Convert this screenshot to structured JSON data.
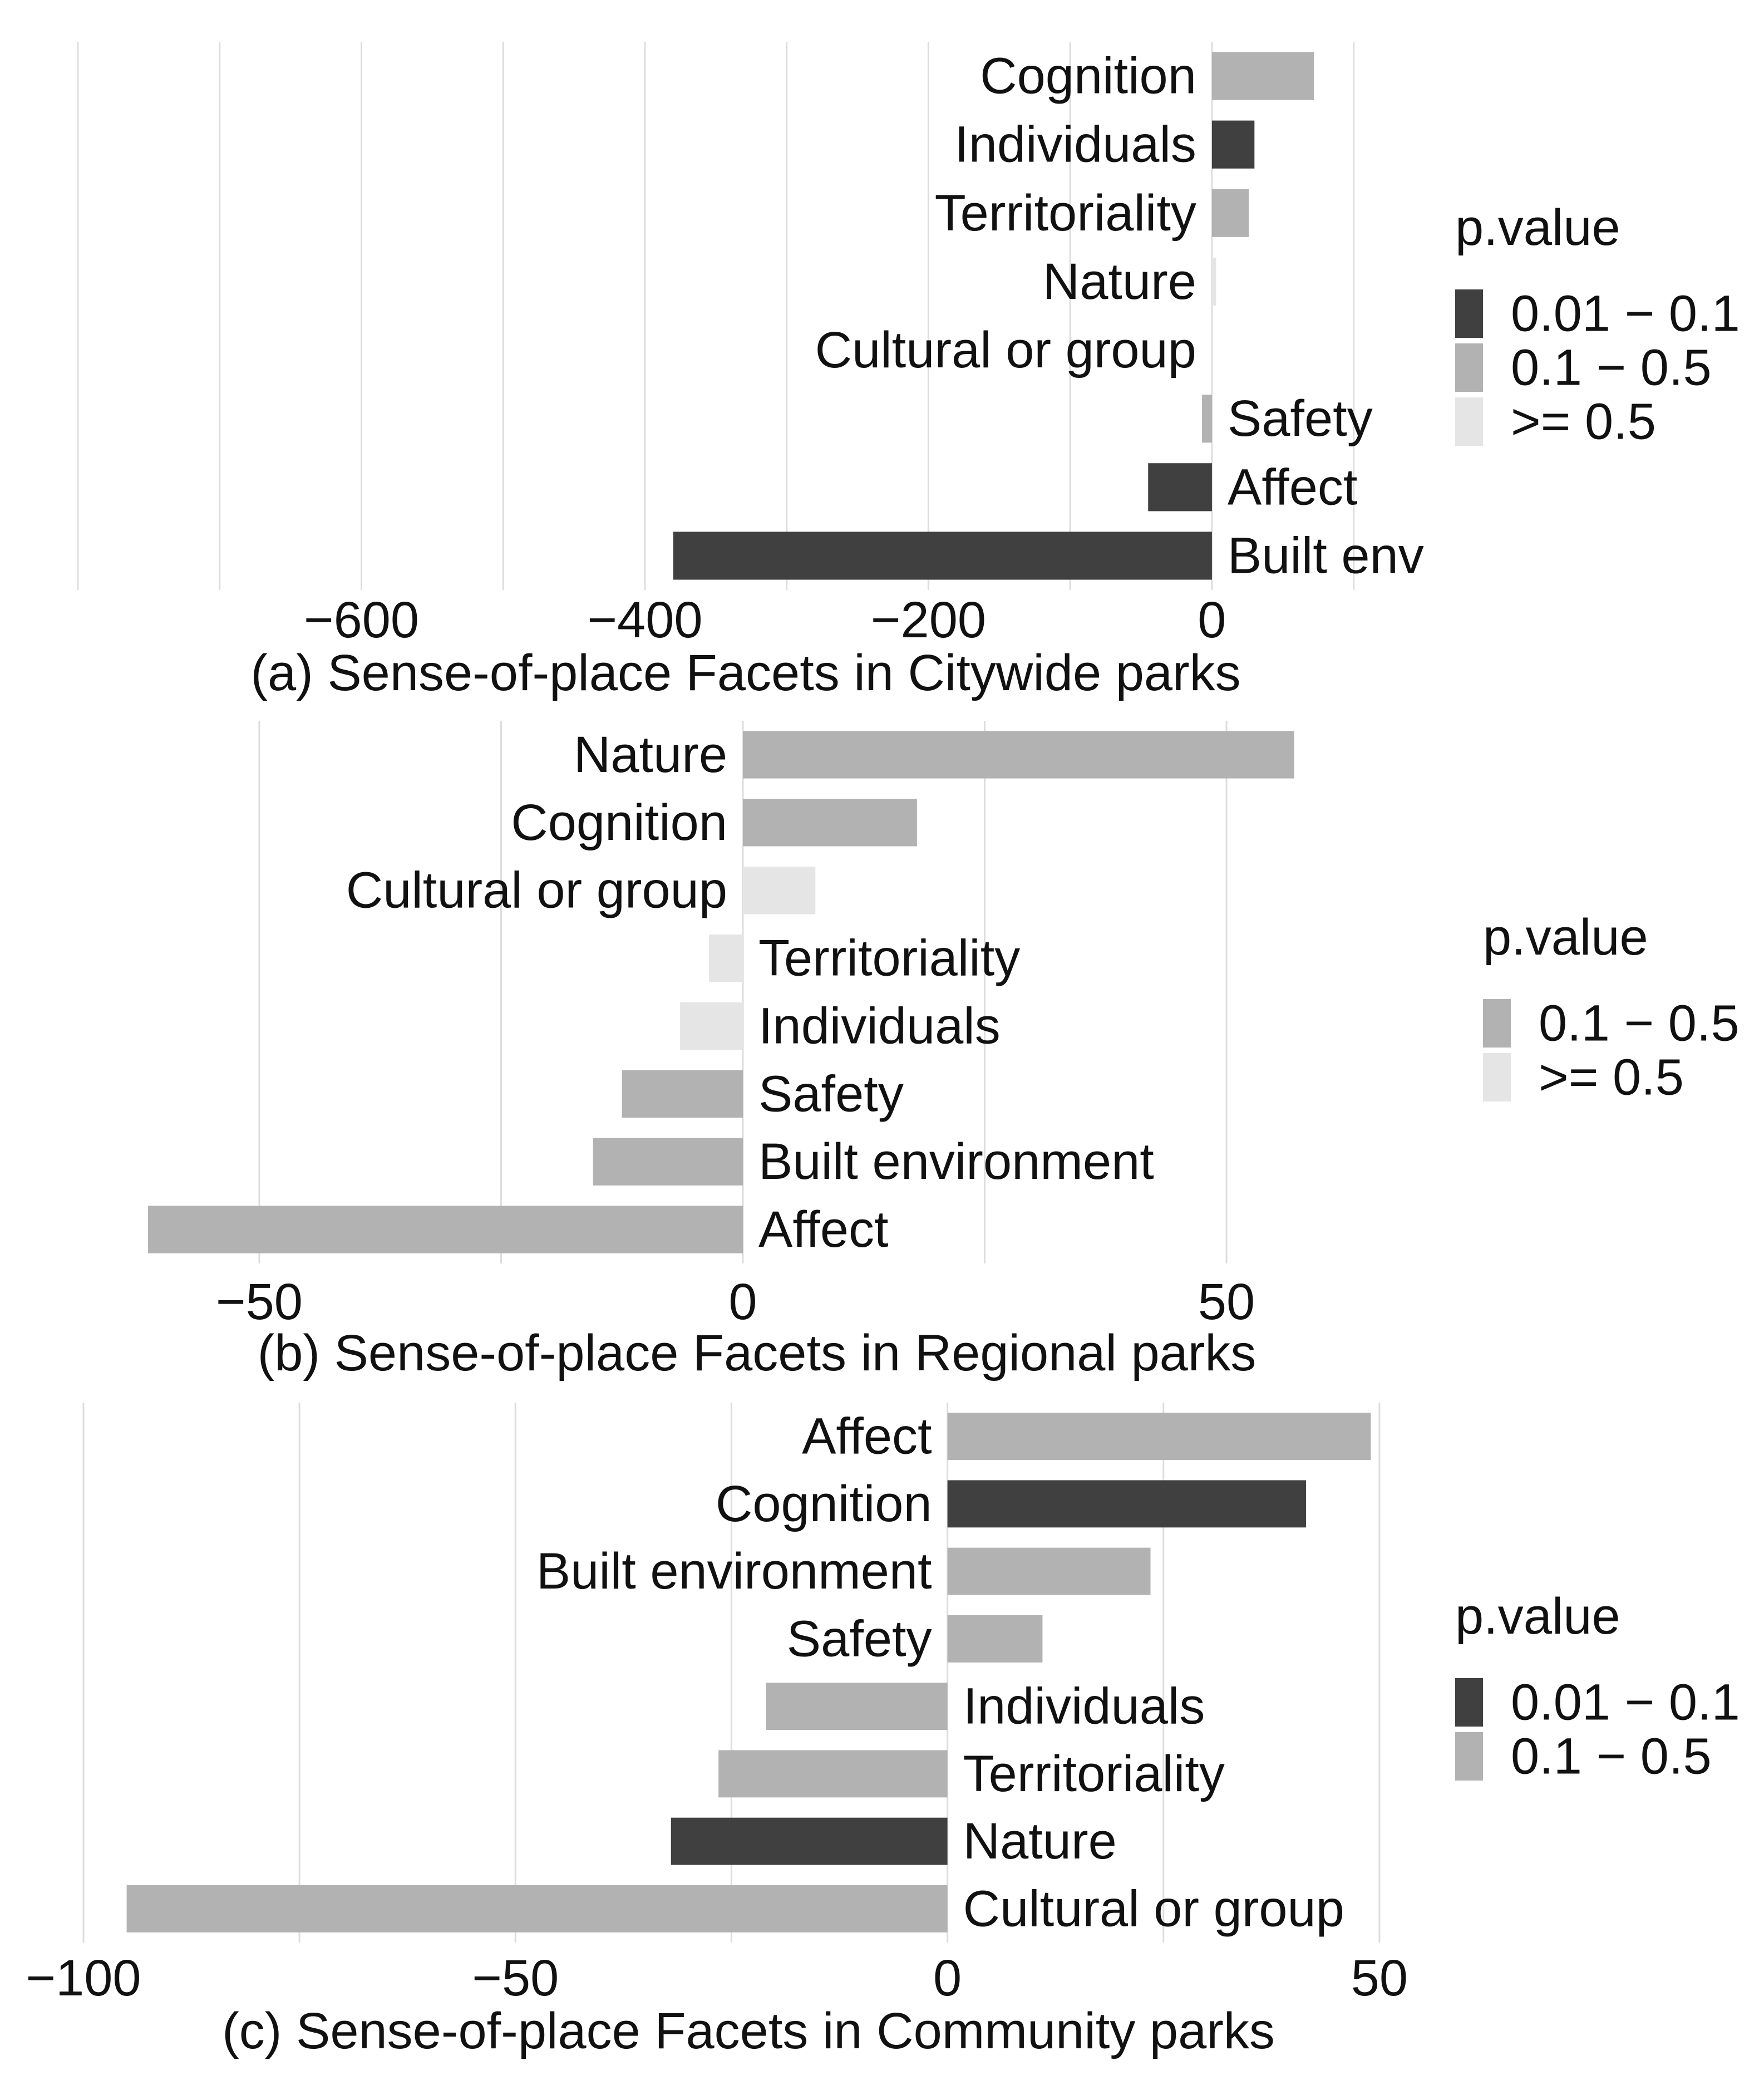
{
  "colors": {
    "p_0.01-0.1": "#404040",
    "p_0.1-0.5": "#b2b2b2",
    "p_>=0.5": "#e5e5e5",
    "grid": "#dddddd",
    "text": "#111111"
  },
  "chart_data": [
    {
      "type": "bar",
      "orientation": "horizontal",
      "title": "(a) Sense-of-place Facets in Citywide parks",
      "xlim": [
        -800,
        150
      ],
      "xticks": [
        -600,
        -400,
        -200,
        0
      ],
      "xtick_labels": [
        "−600",
        "−400",
        "−200",
        "0"
      ],
      "categories": [
        "Cognition",
        "Individuals",
        "Territoriality",
        "Nature",
        "Cultural or group",
        "Safety",
        "Affect",
        "Built envi"
      ],
      "values": [
        72,
        30,
        26,
        3,
        0,
        -7,
        -45,
        -380
      ],
      "p_value": [
        "0.1 − 0.5",
        "0.01 − 0.1",
        "0.1 − 0.5",
        ">= 0.5",
        ">= 0.5",
        "0.1 − 0.5",
        "0.01 − 0.1",
        "0.01 − 0.1"
      ],
      "legend": {
        "title": "p.value",
        "entries": [
          "0.01 − 0.1",
          "0.1 − 0.5",
          ">= 0.5"
        ]
      }
    },
    {
      "type": "bar",
      "orientation": "horizontal",
      "title": "(b) Sense-of-place Facets in Regional parks",
      "xlim": [
        -63,
        63
      ],
      "xticks": [
        -50,
        0,
        50
      ],
      "xtick_labels": [
        "−50",
        "0",
        "50"
      ],
      "categories": [
        "Nature",
        "Cognition",
        "Cultural or group",
        "Territoriality",
        "Individuals",
        "Safety",
        "Built environment",
        "Affect"
      ],
      "values": [
        57,
        18,
        7.5,
        -3.5,
        -6.5,
        -12.5,
        -15.5,
        -61.5
      ],
      "p_value": [
        "0.1 − 0.5",
        "0.1 − 0.5",
        ">= 0.5",
        ">= 0.5",
        ">= 0.5",
        "0.1 − 0.5",
        "0.1 − 0.5",
        "0.1 − 0.5"
      ],
      "legend": {
        "title": "p.value",
        "entries": [
          "0.1 − 0.5",
          ">= 0.5"
        ]
      }
    },
    {
      "type": "bar",
      "orientation": "horizontal",
      "title": "(c) Sense-of-place Facets in Community parks",
      "xlim": [
        -100,
        52
      ],
      "xticks": [
        -100,
        -50,
        0,
        50
      ],
      "xtick_labels": [
        "−100",
        "−50",
        "0",
        "50"
      ],
      "categories": [
        "Affect",
        "Cognition",
        "Built environment",
        "Safety",
        "Individuals",
        "Territoriality",
        "Nature",
        "Cultural or group"
      ],
      "values": [
        49,
        41.5,
        23.5,
        11,
        -21,
        -26.5,
        -32,
        -95
      ],
      "p_value": [
        "0.1 − 0.5",
        "0.01 − 0.1",
        "0.1 − 0.5",
        "0.1 − 0.5",
        "0.1 − 0.5",
        "0.1 − 0.5",
        "0.01 − 0.1",
        "0.1 − 0.5"
      ],
      "legend": {
        "title": "p.value",
        "entries": [
          "0.01 − 0.1",
          "0.1 − 0.5"
        ]
      }
    }
  ]
}
